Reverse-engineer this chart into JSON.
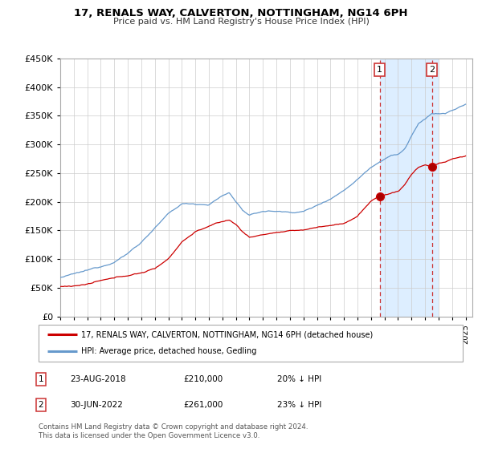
{
  "title": "17, RENALS WAY, CALVERTON, NOTTINGHAM, NG14 6PH",
  "subtitle": "Price paid vs. HM Land Registry's House Price Index (HPI)",
  "ylim": [
    0,
    450000
  ],
  "xlim_start": 1995.0,
  "xlim_end": 2025.5,
  "annotation1": {
    "label": "1",
    "date": "23-AUG-2018",
    "price": 210000,
    "text": "20% ↓ HPI",
    "x": 2018.64
  },
  "annotation2": {
    "label": "2",
    "date": "30-JUN-2022",
    "price": 261000,
    "text": "23% ↓ HPI",
    "x": 2022.5
  },
  "legend_line1": "17, RENALS WAY, CALVERTON, NOTTINGHAM, NG14 6PH (detached house)",
  "legend_line2": "HPI: Average price, detached house, Gedling",
  "footnote": "Contains HM Land Registry data © Crown copyright and database right 2024.\nThis data is licensed under the Open Government Licence v3.0.",
  "red_color": "#cc0000",
  "blue_color": "#6699cc",
  "shaded_color": "#ddeeff",
  "dashed_color": "#cc3333",
  "background_color": "#ffffff",
  "grid_color": "#cccccc",
  "hpi_keypoints_x": [
    1995.0,
    1996.0,
    1997.0,
    1998.0,
    1999.0,
    2000.0,
    2001.0,
    2002.0,
    2003.0,
    2004.0,
    2005.0,
    2006.0,
    2007.0,
    2007.5,
    2008.0,
    2008.5,
    2009.0,
    2009.5,
    2010.0,
    2011.0,
    2012.0,
    2013.0,
    2014.0,
    2015.0,
    2016.0,
    2017.0,
    2018.0,
    2018.5,
    2019.0,
    2019.5,
    2020.0,
    2020.5,
    2021.0,
    2021.5,
    2022.0,
    2022.5,
    2023.0,
    2023.5,
    2024.0,
    2024.5,
    2025.0
  ],
  "hpi_keypoints_y": [
    68000,
    73000,
    78000,
    85000,
    95000,
    110000,
    130000,
    155000,
    178000,
    195000,
    195000,
    195000,
    210000,
    215000,
    200000,
    185000,
    175000,
    178000,
    182000,
    182000,
    180000,
    182000,
    192000,
    205000,
    220000,
    240000,
    262000,
    270000,
    278000,
    285000,
    285000,
    295000,
    318000,
    338000,
    345000,
    355000,
    355000,
    355000,
    360000,
    365000,
    370000
  ],
  "red_keypoints_x": [
    1995.0,
    1996.0,
    1997.0,
    1998.0,
    1999.0,
    2000.0,
    2001.0,
    2002.0,
    2003.0,
    2004.0,
    2005.0,
    2006.0,
    2007.0,
    2007.5,
    2008.0,
    2008.5,
    2009.0,
    2009.5,
    2010.0,
    2011.0,
    2012.0,
    2013.0,
    2014.0,
    2015.0,
    2016.0,
    2017.0,
    2017.5,
    2018.0,
    2018.64,
    2019.0,
    2019.5,
    2020.0,
    2020.5,
    2021.0,
    2021.5,
    2022.0,
    2022.5,
    2023.0,
    2023.5,
    2024.0,
    2025.0
  ],
  "red_keypoints_y": [
    52000,
    54000,
    57000,
    62000,
    65000,
    70000,
    75000,
    82000,
    100000,
    130000,
    148000,
    158000,
    165000,
    168000,
    160000,
    148000,
    138000,
    140000,
    143000,
    147000,
    148000,
    150000,
    155000,
    158000,
    162000,
    175000,
    188000,
    200000,
    210000,
    212000,
    215000,
    218000,
    230000,
    248000,
    260000,
    265000,
    261000,
    268000,
    270000,
    275000,
    280000
  ]
}
